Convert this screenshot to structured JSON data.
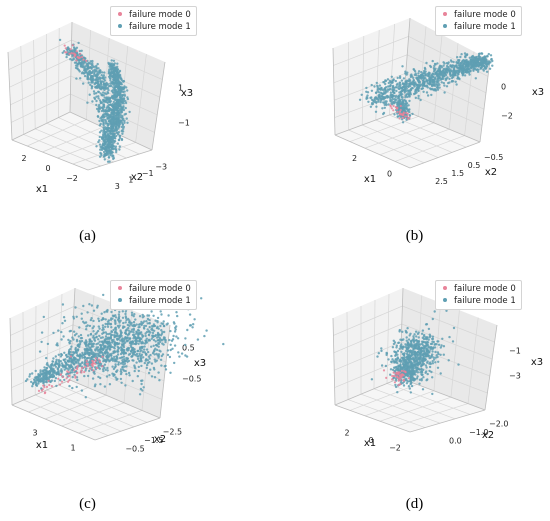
{
  "legend": [
    "failure mode 0",
    "failure mode 1"
  ],
  "colors": {
    "mode0": "#e8849a",
    "mode1": "#5f9fb3",
    "pane": "#f2f2f2",
    "grid": "#d6d6d6",
    "edge": "#bcbcbc"
  },
  "chart_data": [
    {
      "type": "scatter",
      "panel": "a",
      "caption": "(a)",
      "xlabel": "x1",
      "ylabel": "x2",
      "zlabel": "x3",
      "x_ticks": [
        "2",
        "0",
        "−2"
      ],
      "y_ticks": [
        "−3",
        "−1",
        "1",
        "3"
      ],
      "z_ticks": [
        "1",
        "−1"
      ],
      "series": [
        {
          "name": "failure mode 0"
        },
        {
          "name": "failure mode 1"
        }
      ]
    },
    {
      "type": "scatter",
      "panel": "b",
      "caption": "(b)",
      "xlabel": "x1",
      "ylabel": "x2",
      "zlabel": "x3",
      "x_ticks": [
        "2",
        "0"
      ],
      "y_ticks": [
        "−0.5",
        "0.5",
        "1.5",
        "2.5"
      ],
      "z_ticks": [
        "0",
        "−2"
      ],
      "series": [
        {
          "name": "failure mode 0"
        },
        {
          "name": "failure mode 1"
        }
      ]
    },
    {
      "type": "scatter",
      "panel": "c",
      "caption": "(c)",
      "xlabel": "x1",
      "ylabel": "x2",
      "zlabel": "x3",
      "x_ticks": [
        "3",
        "1"
      ],
      "y_ticks": [
        "−2.5",
        "−1.5",
        "−0.5"
      ],
      "z_ticks": [
        "0.5",
        "−0.5"
      ],
      "series": [
        {
          "name": "failure mode 0"
        },
        {
          "name": "failure mode 1"
        }
      ]
    },
    {
      "type": "scatter",
      "panel": "d",
      "caption": "(d)",
      "xlabel": "x1",
      "ylabel": "x2",
      "zlabel": "x3",
      "x_ticks": [
        "2",
        "0",
        "−2"
      ],
      "y_ticks": [
        "−2.0",
        "−1.0",
        "0.0"
      ],
      "z_ticks": [
        "−1",
        "−3"
      ],
      "series": [
        {
          "name": "failure mode 0"
        },
        {
          "name": "failure mode 1"
        }
      ]
    }
  ]
}
